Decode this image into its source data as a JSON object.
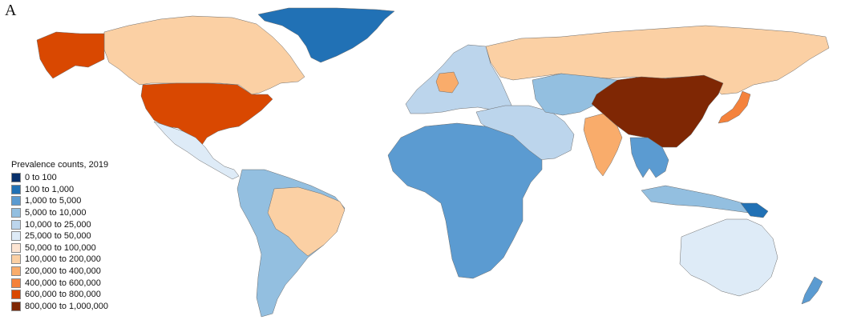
{
  "panel_label": "A",
  "legend": {
    "title": "Prevalence counts, 2019",
    "items": [
      {
        "label": "0 to 100",
        "color": "#08306b"
      },
      {
        "label": "100 to 1,000",
        "color": "#2171b5"
      },
      {
        "label": "1,000 to 5,000",
        "color": "#5b9bd1"
      },
      {
        "label": "5,000 to 10,000",
        "color": "#93bfe0"
      },
      {
        "label": "10,000 to 25,000",
        "color": "#bcd5ec"
      },
      {
        "label": "25,000 to 50,000",
        "color": "#deebf7"
      },
      {
        "label": "50,000 to 100,000",
        "color": "#fde5d3"
      },
      {
        "label": "100,000 to 200,000",
        "color": "#fbd0a4"
      },
      {
        "label": "200,000 to 400,000",
        "color": "#f9ac6b"
      },
      {
        "label": "400,000 to 600,000",
        "color": "#f4823c"
      },
      {
        "label": "600,000 to 800,000",
        "color": "#d94801"
      },
      {
        "label": "800,000 to 1,000,000",
        "color": "#7f2704"
      }
    ]
  },
  "regions": [
    {
      "name": "greenland",
      "color": "#2171b5"
    },
    {
      "name": "alaska",
      "color": "#d94801"
    },
    {
      "name": "canada",
      "color": "#fbd0a4"
    },
    {
      "name": "usa",
      "color": "#d94801"
    },
    {
      "name": "mexico-central-america",
      "color": "#deebf7"
    },
    {
      "name": "south-america",
      "color": "#93bfe0"
    },
    {
      "name": "brazil",
      "color": "#fbd0a4"
    },
    {
      "name": "europe",
      "color": "#bcd5ec"
    },
    {
      "name": "germany",
      "color": "#f9ac6b"
    },
    {
      "name": "russia",
      "color": "#fbd0a4"
    },
    {
      "name": "middle-east",
      "color": "#bcd5ec"
    },
    {
      "name": "africa",
      "color": "#5b9bd1"
    },
    {
      "name": "central-asia",
      "color": "#93bfe0"
    },
    {
      "name": "china",
      "color": "#7f2704"
    },
    {
      "name": "india",
      "color": "#f9ac6b"
    },
    {
      "name": "japan",
      "color": "#f4823c"
    },
    {
      "name": "southeast-asia",
      "color": "#5b9bd1"
    },
    {
      "name": "indonesia",
      "color": "#93bfe0"
    },
    {
      "name": "papua-new-guinea",
      "color": "#2171b5"
    },
    {
      "name": "australia",
      "color": "#deebf7"
    },
    {
      "name": "new-zealand",
      "color": "#5b9bd1"
    }
  ]
}
